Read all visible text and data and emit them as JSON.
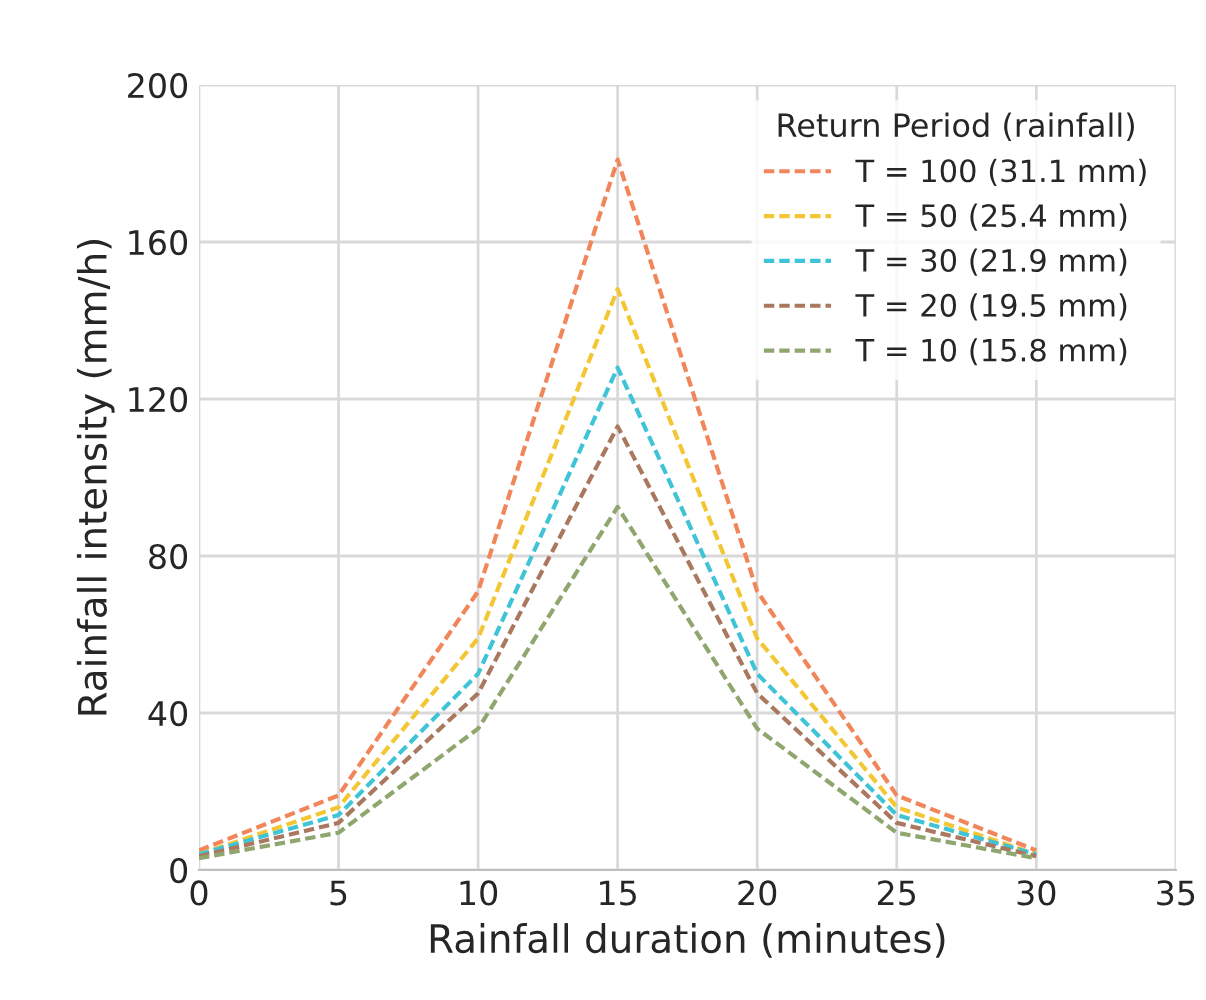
{
  "chart_data": {
    "type": "line",
    "xlabel": "Rainfall duration (minutes)",
    "ylabel": "Rainfall intensity (mm/h)",
    "legend_title": "Return Period (rainfall)",
    "x": [
      0,
      5,
      10,
      15,
      20,
      25,
      30
    ],
    "series": [
      {
        "name": "T = 100 (31.1 mm)",
        "color": "#f0865a",
        "values": [
          5,
          19,
          71,
          181,
          71,
          19,
          5
        ]
      },
      {
        "name": "T = 50 (25.4 mm)",
        "color": "#f3c634",
        "values": [
          4,
          16,
          59,
          148,
          59,
          16,
          4
        ]
      },
      {
        "name": "T = 30 (21.9 mm)",
        "color": "#3fc3d6",
        "values": [
          4,
          14,
          50,
          128,
          50,
          14,
          4
        ]
      },
      {
        "name": "T = 20 (19.5 mm)",
        "color": "#a9785f",
        "values": [
          3.5,
          12,
          45,
          113,
          45,
          12,
          3.5
        ]
      },
      {
        "name": "T = 10 (15.8 mm)",
        "color": "#8fa66e",
        "values": [
          3,
          9.5,
          36,
          92.5,
          36,
          9.5,
          3
        ]
      }
    ],
    "xlim": [
      0,
      35
    ],
    "xticks": [
      0,
      5,
      10,
      15,
      20,
      25,
      30,
      35
    ],
    "ylim": [
      0,
      200
    ],
    "yticks": [
      0,
      40,
      80,
      120,
      160,
      200
    ],
    "grid": true,
    "legend": "top right",
    "line_style": "dashed",
    "marker": "none"
  }
}
